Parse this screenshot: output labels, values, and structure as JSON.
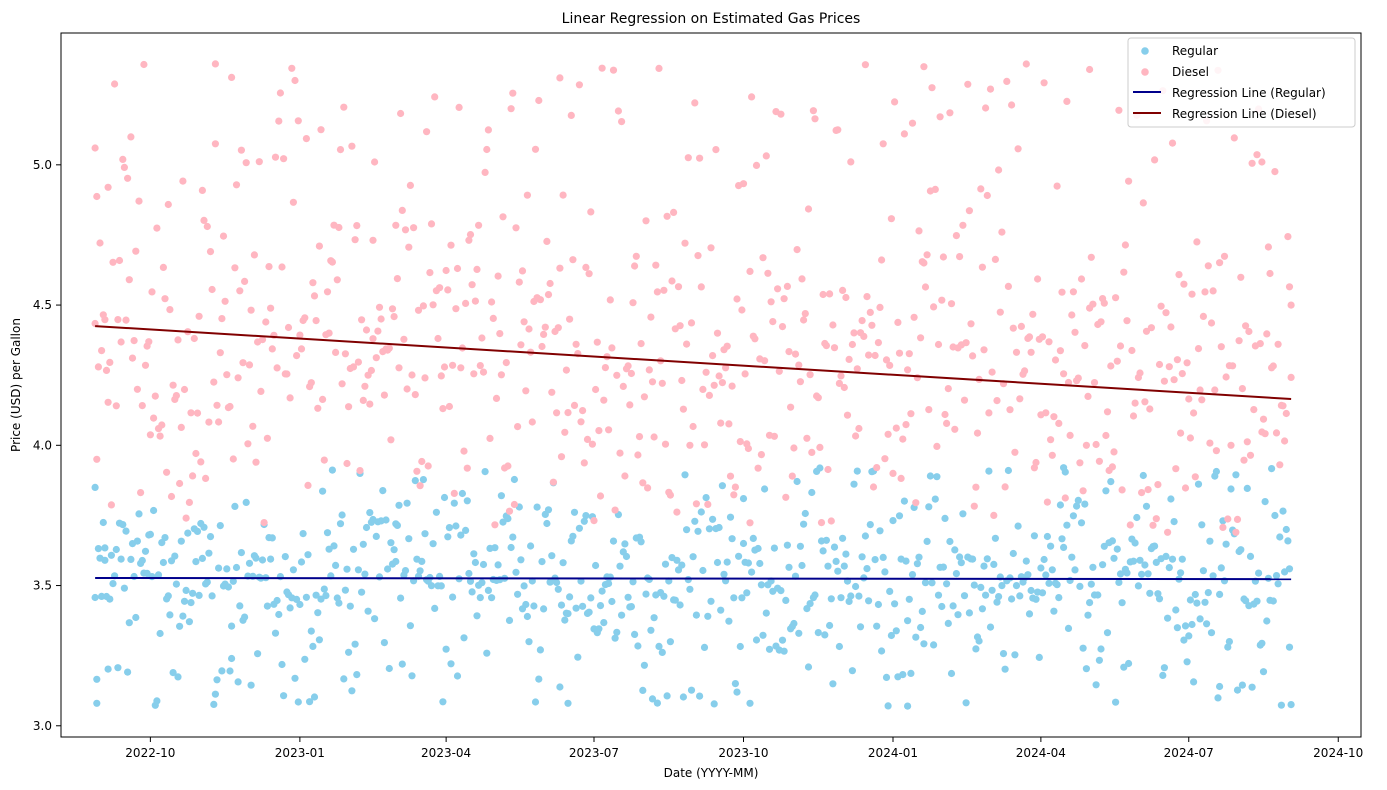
{
  "chart_data": {
    "type": "scatter",
    "title": "Linear Regression on Estimated Gas Prices",
    "xlabel": "Date (YYYY-MM)",
    "ylabel": "Price (USD) per Gallon",
    "x_range": [
      "2022-08-07",
      "2024-10-15"
    ],
    "ylim": [
      2.96,
      5.47
    ],
    "x_ticks": [
      "2022-10",
      "2023-01",
      "2023-04",
      "2023-07",
      "2023-10",
      "2024-01",
      "2024-04",
      "2024-07",
      "2024-10"
    ],
    "x_tick_dates": [
      "2022-10-01",
      "2023-01-01",
      "2023-04-01",
      "2023-07-01",
      "2023-10-01",
      "2024-01-01",
      "2024-04-01",
      "2024-07-01",
      "2024-10-01"
    ],
    "y_ticks": [
      "3.0",
      "3.5",
      "4.0",
      "4.5",
      "5.0"
    ],
    "y_tick_values": [
      3.0,
      3.5,
      4.0,
      4.5,
      5.0
    ],
    "grid": false,
    "legend_position": "top-right",
    "x_start_date": "2022-08-28",
    "x_end_date": "2024-09-02",
    "series": [
      {
        "name": "Regular",
        "kind": "scatter",
        "color": "#87ceeb",
        "base": 3.53,
        "slope": 0.0,
        "range": [
          3.07,
          3.92
        ],
        "sample_points": [
          [
            "2022-08-28",
            3.85
          ],
          [
            "2022-08-29",
            3.08
          ],
          [
            "2022-09-03",
            3.59
          ],
          [
            "2022-11-20",
            3.24
          ],
          [
            "2023-03-01",
            3.72
          ],
          [
            "2023-06-15",
            3.4
          ],
          [
            "2023-10-01",
            3.81
          ],
          [
            "2024-01-10",
            3.07
          ],
          [
            "2024-04-15",
            3.92
          ],
          [
            "2024-07-20",
            3.14
          ],
          [
            "2024-09-01",
            3.28
          ]
        ]
      },
      {
        "name": "Diesel",
        "kind": "scatter",
        "color": "#ffb6c1",
        "base": 4.42,
        "slope": -0.26,
        "range": [
          3.69,
          5.37
        ],
        "sample_points": [
          [
            "2022-08-28",
            5.06
          ],
          [
            "2022-08-29",
            3.95
          ],
          [
            "2022-09-05",
            4.92
          ],
          [
            "2022-11-10",
            5.36
          ],
          [
            "2023-02-15",
            4.38
          ],
          [
            "2023-06-10",
            5.31
          ],
          [
            "2023-10-05",
            4.62
          ],
          [
            "2024-01-20",
            5.35
          ],
          [
            "2024-05-01",
            5.34
          ],
          [
            "2024-08-15",
            5.01
          ],
          [
            "2024-09-02",
            4.5
          ]
        ]
      },
      {
        "name": "Regression Line (Regular)",
        "kind": "line",
        "color": "#00008b",
        "x": [
          "2022-08-28",
          "2024-09-02"
        ],
        "values": [
          3.527,
          3.523
        ]
      },
      {
        "name": "Regression Line (Diesel)",
        "kind": "line",
        "color": "#800000",
        "x": [
          "2022-08-28",
          "2024-09-02"
        ],
        "values": [
          4.425,
          4.165
        ]
      }
    ]
  }
}
